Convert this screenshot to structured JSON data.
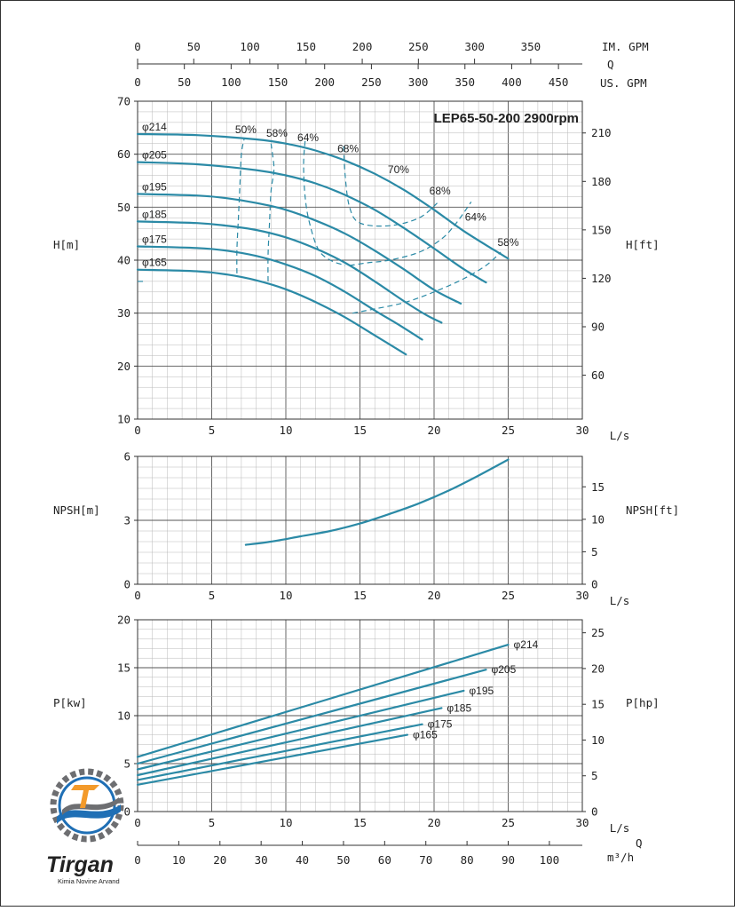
{
  "colors": {
    "curve": "#2b8aa6",
    "efficiency": "#2b8aa6",
    "grid_minor": "#b8b8b8",
    "grid_major": "#555555",
    "logo_blue": "#1f6fb5",
    "logo_orange": "#f39a2a",
    "logo_gray": "#6d6e71"
  },
  "logo": {
    "word": "Tirgan",
    "subtitle": "Kimia Novine Arvand",
    "icon": "gear-wave-logo-icon"
  },
  "chart_data": [
    {
      "type": "line",
      "id": "head",
      "title": "LEP65-50-200 2900rpm",
      "xlabel": "L/s",
      "ylabel": "H[m]",
      "ylabel_right": "H[ft]",
      "xlim": [
        0,
        30
      ],
      "ylim": [
        10,
        70
      ],
      "x_ticks": [
        "0",
        "5",
        "10",
        "15",
        "20",
        "25",
        "30"
      ],
      "y_ticks": [
        "10",
        "20",
        "30",
        "40",
        "50",
        "60",
        "70"
      ],
      "y_right_ticks": [
        "60",
        "90",
        "120",
        "150",
        "180",
        "210"
      ],
      "grid": true,
      "top_axes": [
        {
          "label": "IM. GPM",
          "ticks": [
            "0",
            "50",
            "100",
            "150",
            "200",
            "250",
            "300",
            "350"
          ],
          "per_lps": 13.198
        },
        {
          "label": "Q",
          "ticks": [],
          "per_lps": 0
        },
        {
          "label": "US. GPM",
          "ticks": [
            "0",
            "50",
            "100",
            "150",
            "200",
            "250",
            "300",
            "350",
            "400",
            "450"
          ],
          "per_lps": 15.85
        }
      ],
      "series": [
        {
          "name": "φ214",
          "x": [
            0,
            4,
            8,
            10,
            12,
            14,
            16,
            18,
            20,
            22,
            24,
            25
          ],
          "y": [
            63.8,
            63.6,
            62.8,
            62.0,
            60.7,
            58.8,
            56.3,
            53.2,
            49.5,
            45.5,
            42.0,
            40.3
          ]
        },
        {
          "name": "φ205",
          "x": [
            0,
            4,
            8,
            10,
            12,
            14,
            16,
            18,
            20,
            22,
            23.5
          ],
          "y": [
            58.5,
            58.1,
            57.0,
            56.0,
            54.5,
            52.3,
            49.5,
            46.0,
            42.2,
            38.3,
            35.8
          ]
        },
        {
          "name": "φ195",
          "x": [
            0,
            4,
            6,
            8,
            10,
            12,
            14,
            16,
            18,
            20,
            21.8
          ],
          "y": [
            52.5,
            52.2,
            51.7,
            50.8,
            49.5,
            47.5,
            45.0,
            41.8,
            38.2,
            34.4,
            31.8
          ]
        },
        {
          "name": "φ185",
          "x": [
            0,
            4,
            6,
            8,
            10,
            12,
            14,
            16,
            18,
            19.5,
            20.5
          ],
          "y": [
            47.3,
            47.0,
            46.5,
            45.7,
            44.3,
            42.2,
            39.5,
            36.0,
            32.2,
            29.6,
            28.2
          ]
        },
        {
          "name": "φ175",
          "x": [
            0,
            4,
            6,
            8,
            10,
            12,
            14,
            16,
            17.5,
            19.2
          ],
          "y": [
            42.6,
            42.3,
            41.8,
            40.8,
            39.2,
            37.0,
            34.0,
            30.5,
            28.0,
            25.0
          ]
        },
        {
          "name": "φ165",
          "x": [
            0,
            4,
            6,
            8,
            10,
            12,
            14,
            16,
            18.1
          ],
          "y": [
            38.2,
            37.9,
            37.3,
            36.2,
            34.5,
            32.1,
            29.2,
            25.8,
            22.2
          ]
        }
      ],
      "efficiency_curves": [
        {
          "label": "50%",
          "x": [
            6.7,
            6.7,
            6.8,
            6.9,
            7.0,
            7.2
          ],
          "y": [
            37.5,
            42.0,
            48.0,
            54.0,
            60.0,
            63.0
          ]
        },
        {
          "label": "58%",
          "x": [
            8.8,
            8.8,
            8.9,
            9.0,
            9.2,
            9.1,
            9.0
          ],
          "y": [
            36.0,
            41.0,
            47.0,
            53.0,
            57.0,
            60.0,
            62.0
          ]
        },
        {
          "label": "64%",
          "x": [
            11.3,
            11.2,
            11.3,
            11.6,
            12.2,
            13.0,
            14.0
          ],
          "y": [
            62.5,
            58.0,
            52.0,
            47.0,
            42.0,
            40.0,
            39.0
          ]
        },
        {
          "label": "68%",
          "x": [
            13.9,
            14.0,
            14.3,
            15.0,
            17.0,
            19.0,
            20.3
          ],
          "y": [
            61.5,
            56.0,
            50.0,
            47.0,
            46.5,
            48.0,
            51.0
          ]
        },
        {
          "label": "64%",
          "x": [
            14.3,
            15.5,
            17.0,
            19.0,
            20.5,
            21.5,
            22.5
          ],
          "y": [
            39.0,
            39.5,
            40.0,
            41.5,
            44.0,
            47.0,
            51.0
          ]
        },
        {
          "label": "58%",
          "x": [
            14.5,
            16.0,
            18.0,
            20.0,
            22.0,
            23.5,
            24.5
          ],
          "y": [
            30.0,
            30.8,
            32.0,
            34.0,
            36.5,
            39.0,
            41.5
          ]
        },
        {
          "label": "",
          "x": [
            0,
            0.6
          ],
          "y": [
            36.0,
            36.0
          ]
        }
      ],
      "efficiency_labels": [
        {
          "text": "50%",
          "x": 7.3,
          "y": 64.0
        },
        {
          "text": "58%",
          "x": 9.4,
          "y": 63.3
        },
        {
          "text": "64%",
          "x": 11.5,
          "y": 62.5
        },
        {
          "text": "68%",
          "x": 14.2,
          "y": 60.4
        },
        {
          "text": "70%",
          "x": 17.6,
          "y": 56.4
        },
        {
          "text": "68%",
          "x": 20.4,
          "y": 52.4
        },
        {
          "text": "64%",
          "x": 22.8,
          "y": 47.5
        },
        {
          "text": "58%",
          "x": 25.0,
          "y": 42.7
        }
      ]
    },
    {
      "type": "line",
      "id": "npsh",
      "title": "",
      "xlabel": "L/s",
      "ylabel": "NPSH[m]",
      "ylabel_right": "NPSH[ft]",
      "xlim": [
        0,
        30
      ],
      "ylim": [
        0,
        6
      ],
      "x_ticks": [
        "0",
        "5",
        "10",
        "15",
        "20",
        "25",
        "30"
      ],
      "y_ticks": [
        "0",
        "3",
        "6"
      ],
      "y_right_ticks": [
        "0",
        "5",
        "10",
        "15"
      ],
      "grid": true,
      "series": [
        {
          "x": [
            7.3,
            9,
            11,
            13,
            15,
            17,
            19,
            21,
            23,
            25
          ],
          "y": [
            1.85,
            2.0,
            2.25,
            2.5,
            2.85,
            3.3,
            3.8,
            4.4,
            5.1,
            5.85
          ]
        }
      ]
    },
    {
      "type": "line",
      "id": "power",
      "title": "",
      "xlabel": "L/s",
      "ylabel": "P[kw]",
      "ylabel_right": "P[hp]",
      "xlim": [
        0,
        30
      ],
      "ylim": [
        0,
        20
      ],
      "x_ticks": [
        "0",
        "5",
        "10",
        "15",
        "20",
        "25",
        "30"
      ],
      "y_ticks": [
        "0",
        "5",
        "10",
        "15",
        "20"
      ],
      "y_right_ticks": [
        "0",
        "5",
        "10",
        "15",
        "20",
        "25"
      ],
      "grid": true,
      "bottom_axis": {
        "label": "Q",
        "unit": "m³/h",
        "ticks": [
          "0",
          "10",
          "20",
          "30",
          "40",
          "50",
          "60",
          "70",
          "80",
          "90",
          "100"
        ],
        "per_lps": 3.6
      },
      "series": [
        {
          "name": "φ214",
          "x": [
            0,
            25
          ],
          "y": [
            5.7,
            17.4
          ]
        },
        {
          "name": "φ205",
          "x": [
            0,
            23.5
          ],
          "y": [
            5.0,
            14.8
          ]
        },
        {
          "name": "φ195",
          "x": [
            0,
            22
          ],
          "y": [
            4.4,
            12.6
          ]
        },
        {
          "name": "φ185",
          "x": [
            0,
            20.5
          ],
          "y": [
            3.8,
            10.8
          ]
        },
        {
          "name": "φ175",
          "x": [
            0,
            19.2
          ],
          "y": [
            3.3,
            9.1
          ]
        },
        {
          "name": "φ165",
          "x": [
            0,
            18.2
          ],
          "y": [
            2.8,
            8.0
          ]
        }
      ]
    }
  ]
}
